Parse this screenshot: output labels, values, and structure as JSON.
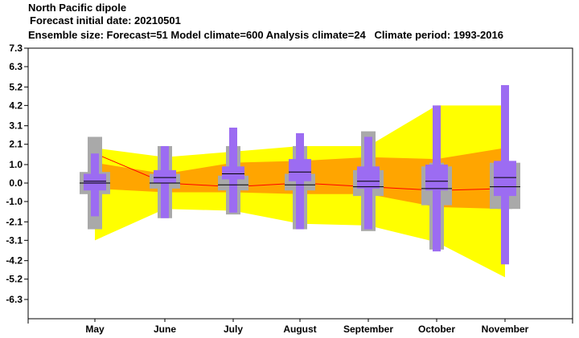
{
  "header": {
    "title": "North Pacific dipole",
    "forecast_line": "Forecast initial date: 20210501",
    "ensemble_line": "Ensemble size: Forecast=51 Model climate=600 Analysis climate=24   Climate period: 1993-2016"
  },
  "chart_data": {
    "type": "box",
    "title": "North Pacific dipole",
    "categories": [
      "May",
      "June",
      "July",
      "August",
      "September",
      "October",
      "November"
    ],
    "yticks": [
      "7.3",
      "6.3",
      "5.2",
      "4.2",
      "3.1",
      "2.1",
      "1.0",
      "0.0",
      "-1.0",
      "-2.1",
      "-3.1",
      "-4.2",
      "-5.2",
      "-6.3"
    ],
    "ylim": [
      -7.3,
      7.3
    ],
    "grid": false,
    "colors": {
      "climate_outer": "#a9a9a9",
      "forecast": "#9c6cf2",
      "band_outer": "#ffff00",
      "band_inner": "#ffa500",
      "mean_line": "#ff0000"
    },
    "model_climate_band": {
      "p_low": [
        -3.1,
        -1.4,
        -1.5,
        -2.2,
        -2.3,
        -3.2,
        -5.1
      ],
      "q_low": [
        -0.3,
        -0.5,
        -0.5,
        -0.6,
        -0.6,
        -1.3,
        -1.4
      ],
      "mean": [
        1.6,
        0.0,
        -0.2,
        0.0,
        -0.2,
        -0.4,
        -0.3
      ],
      "q_high": [
        1.1,
        0.5,
        1.1,
        1.2,
        1.4,
        1.3,
        1.9
      ],
      "p_high": [
        1.9,
        1.4,
        1.7,
        2.0,
        2.0,
        4.2,
        4.2
      ]
    },
    "analysis_climate": [
      {
        "p_low": -2.5,
        "q_low": -0.6,
        "median": 0.0,
        "q_high": 0.6,
        "p_high": 2.5
      },
      {
        "p_low": -1.9,
        "q_low": -0.3,
        "median": 0.0,
        "q_high": 0.5,
        "p_high": 2.0
      },
      {
        "p_low": -1.7,
        "q_low": -0.4,
        "median": -0.1,
        "q_high": 0.4,
        "p_high": 2.0
      },
      {
        "p_low": -2.5,
        "q_low": -0.4,
        "median": -0.1,
        "q_high": 0.5,
        "p_high": 2.0
      },
      {
        "p_low": -2.6,
        "q_low": -0.7,
        "median": -0.2,
        "q_high": 0.7,
        "p_high": 2.8
      },
      {
        "p_low": -3.6,
        "q_low": -1.2,
        "median": -0.3,
        "q_high": 0.9,
        "p_high": 1.1
      },
      {
        "p_low": -1.4,
        "q_low": -1.4,
        "median": -0.2,
        "q_high": 1.1,
        "p_high": 1.1
      }
    ],
    "forecast": [
      {
        "p_low": -1.8,
        "q_low": -0.4,
        "median": 0.1,
        "q_high": 0.5,
        "p_high": 1.6
      },
      {
        "p_low": -1.9,
        "q_low": 0.0,
        "median": 0.3,
        "q_high": 0.7,
        "p_high": 2.0
      },
      {
        "p_low": -1.6,
        "q_low": 0.2,
        "median": 0.5,
        "q_high": 0.9,
        "p_high": 3.0
      },
      {
        "p_low": -2.5,
        "q_low": 0.1,
        "median": 0.6,
        "q_high": 1.3,
        "p_high": 2.7
      },
      {
        "p_low": -2.5,
        "q_low": -0.3,
        "median": 0.1,
        "q_high": 0.9,
        "p_high": 2.5
      },
      {
        "p_low": -3.7,
        "q_low": -0.4,
        "median": 0.1,
        "q_high": 1.0,
        "p_high": 4.2
      },
      {
        "p_low": -4.4,
        "q_low": -0.7,
        "median": 0.3,
        "q_high": 1.2,
        "p_high": 5.3
      }
    ]
  }
}
